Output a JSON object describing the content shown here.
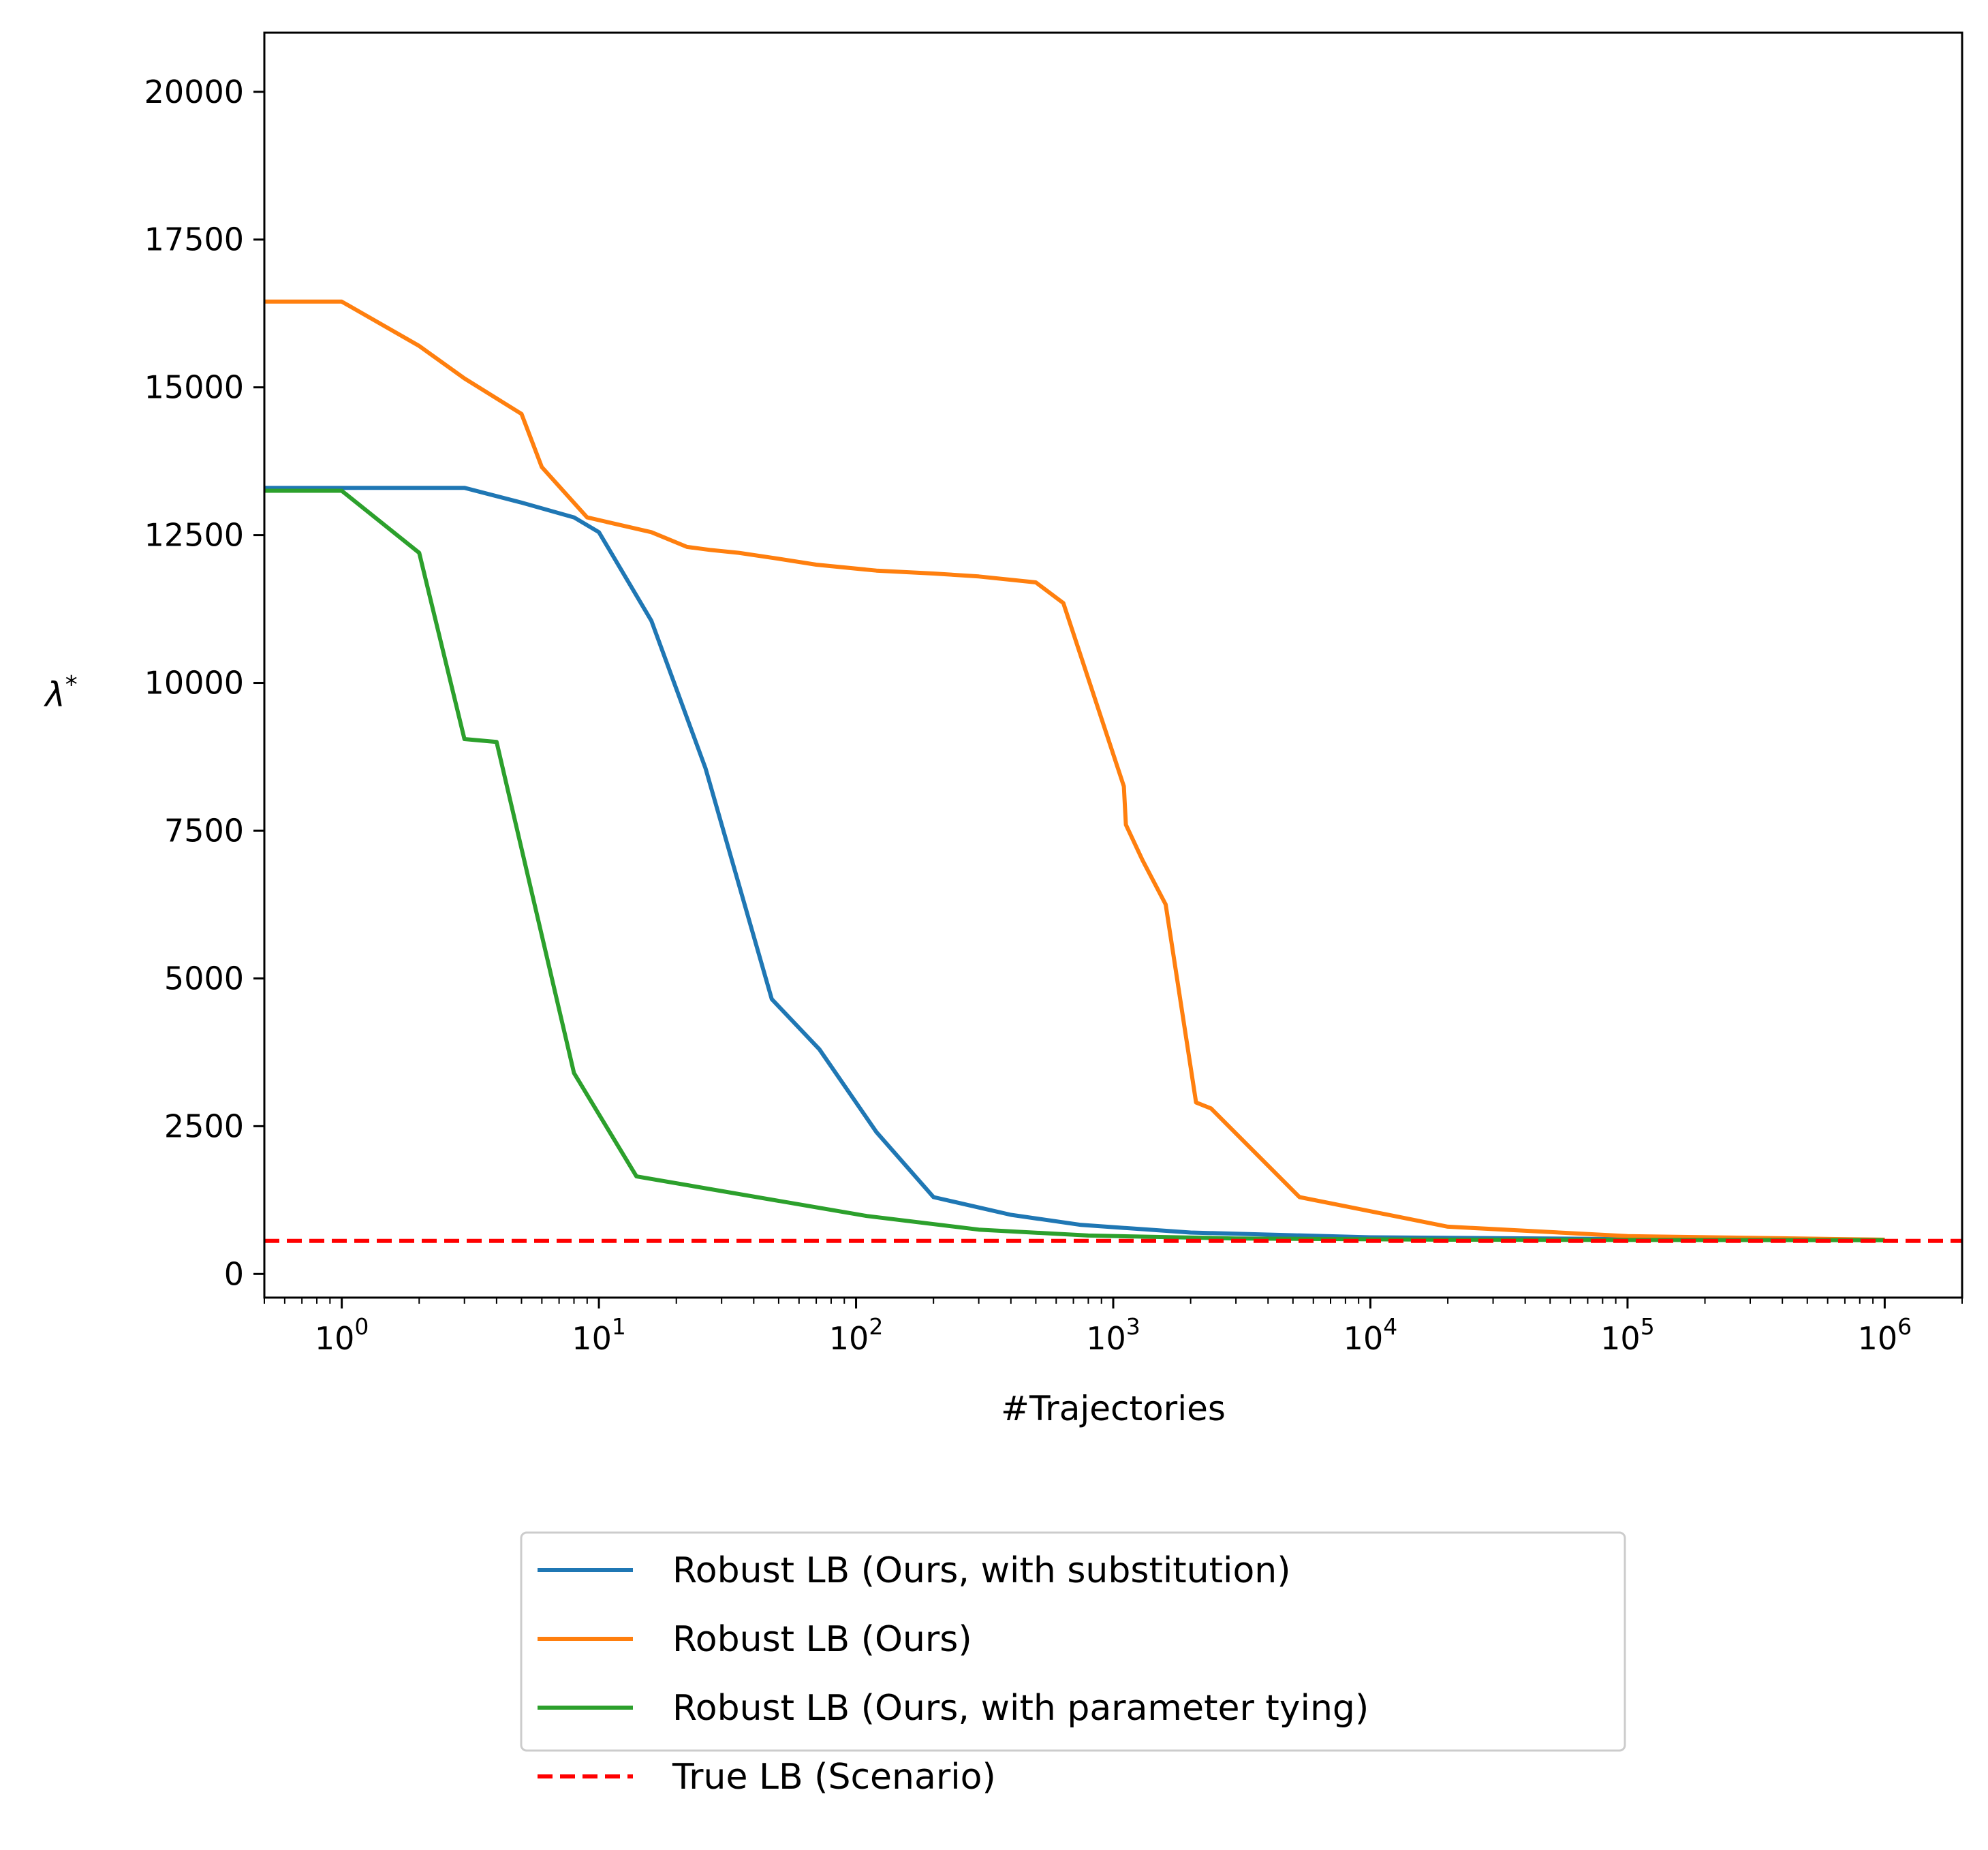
{
  "chart_data": {
    "type": "line",
    "title": "",
    "xlabel": "#Trajectories",
    "ylabel": "λ*",
    "xscale": "log",
    "xlim": [
      0.5,
      2000000
    ],
    "ylim": [
      -400,
      21000
    ],
    "grid": false,
    "legend_position": "below plot, centered",
    "xticks": [
      {
        "value": 1,
        "base": "10",
        "exp": "0"
      },
      {
        "value": 10,
        "base": "10",
        "exp": "1"
      },
      {
        "value": 100,
        "base": "10",
        "exp": "2"
      },
      {
        "value": 1000,
        "base": "10",
        "exp": "3"
      },
      {
        "value": 10000,
        "base": "10",
        "exp": "4"
      },
      {
        "value": 100000,
        "base": "10",
        "exp": "5"
      },
      {
        "value": 1000000,
        "base": "10",
        "exp": "6"
      }
    ],
    "yticks": [
      0,
      2500,
      5000,
      7500,
      10000,
      12500,
      15000,
      17500,
      20000
    ],
    "series": [
      {
        "name": "Robust LB (Ours, with substitution)",
        "color": "#1f77b4",
        "style": "solid",
        "x": [
          0.5,
          1,
          3,
          5,
          8,
          10,
          16,
          26,
          47,
          72,
          120,
          200,
          400,
          750,
          2000,
          10000,
          100000,
          1000000
        ],
        "y": [
          13300,
          13300,
          13300,
          13050,
          12800,
          12550,
          11050,
          8550,
          4650,
          3800,
          2400,
          1300,
          1000,
          830,
          700,
          620,
          590,
          580
        ]
      },
      {
        "name": "Robust LB (Ours)",
        "color": "#ff7f0e",
        "style": "solid",
        "x": [
          0.5,
          1,
          2,
          3,
          5,
          6,
          9,
          16,
          22,
          27,
          35,
          50,
          70,
          120,
          200,
          300,
          500,
          640,
          1100,
          1120,
          1300,
          1600,
          2100,
          2400,
          5300,
          20000,
          100000,
          1000000
        ],
        "y": [
          16450,
          16450,
          15700,
          15150,
          14550,
          13650,
          12800,
          12550,
          12300,
          12250,
          12200,
          12100,
          12000,
          11900,
          11850,
          11800,
          11700,
          11350,
          8250,
          7600,
          7000,
          6250,
          2900,
          2800,
          1300,
          800,
          640,
          580
        ]
      },
      {
        "name": "Robust LB (Ours, with parameter tying)",
        "color": "#2ca02c",
        "style": "solid",
        "x": [
          0.5,
          1,
          2,
          3,
          4,
          8,
          14,
          110,
          300,
          800,
          3000,
          20000,
          1000000
        ],
        "y": [
          13250,
          13250,
          12200,
          9050,
          9000,
          3400,
          1650,
          980,
          750,
          650,
          600,
          580,
          570
        ]
      },
      {
        "name": "True LB (Scenario)",
        "color": "#ff0000",
        "style": "dashed",
        "x": [
          0.5,
          2000000
        ],
        "y": [
          560,
          560
        ]
      }
    ]
  }
}
